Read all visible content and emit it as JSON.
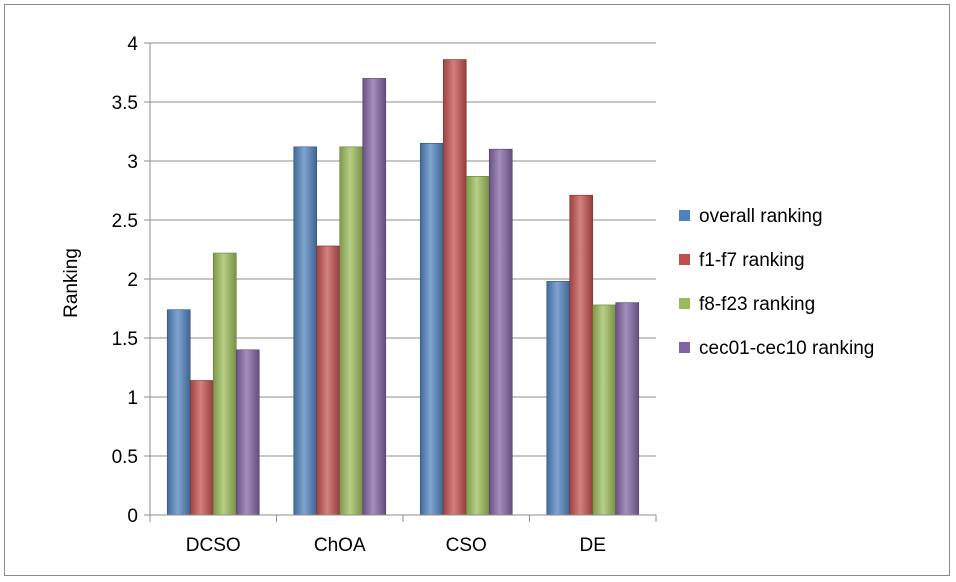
{
  "chart_data": {
    "type": "bar",
    "title": "",
    "xlabel": "",
    "ylabel": "Ranking",
    "ylim": [
      0,
      4
    ],
    "yticks": [
      0,
      0.5,
      1,
      1.5,
      2,
      2.5,
      3,
      3.5,
      4
    ],
    "ytick_labels": [
      "0",
      "0.5",
      "1",
      "1.5",
      "2",
      "2.5",
      "3",
      "3.5",
      "4"
    ],
    "grid": true,
    "legend_position": "right",
    "categories": [
      "DCSO",
      "ChOA",
      "CSO",
      "DE"
    ],
    "series": [
      {
        "name": "overall ranking",
        "color": "#4f81bd",
        "values": [
          1.74,
          3.12,
          3.15,
          1.98
        ]
      },
      {
        "name": "f1-f7 ranking",
        "color": "#c0504d",
        "values": [
          1.14,
          2.28,
          3.86,
          2.71
        ]
      },
      {
        "name": "f8-f23 ranking",
        "color": "#9bbb59",
        "values": [
          2.22,
          3.12,
          2.87,
          1.78
        ]
      },
      {
        "name": "cec01-cec10 ranking",
        "color": "#8064a2",
        "values": [
          1.4,
          3.7,
          3.1,
          1.8
        ]
      }
    ]
  }
}
